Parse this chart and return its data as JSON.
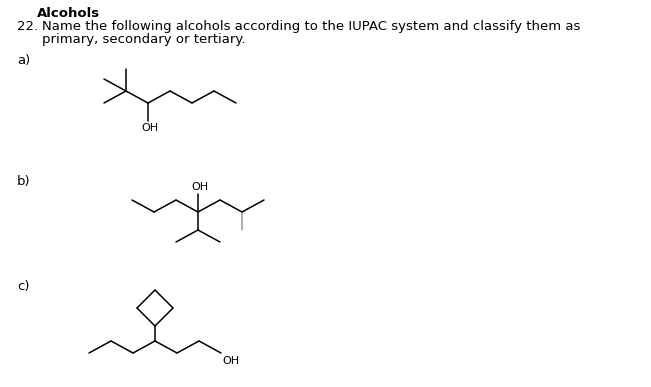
{
  "title": "Alcohols",
  "q_num": "22.",
  "q_line1": "Name the following alcohols according to the IUPAC system and classify them as",
  "q_line2": "primary, secondary or tertiary.",
  "label_a": "a)",
  "label_b": "b)",
  "label_c": "c)",
  "background": "#ffffff",
  "lc": "#000000",
  "gray": "#999999",
  "tc": "#000000",
  "lw": 1.1,
  "fs": 9.5,
  "oh_fs": 8.0,
  "s": 0.145
}
